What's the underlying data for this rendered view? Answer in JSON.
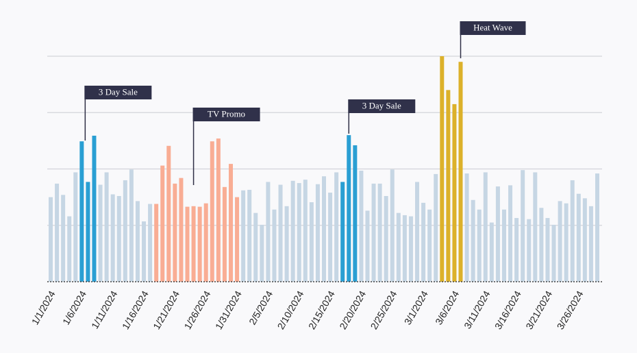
{
  "chart_data": {
    "type": "bar",
    "categories": [
      "1/1/2024",
      null,
      null,
      null,
      null,
      "1/6/2024",
      null,
      null,
      null,
      null,
      "1/11/2024",
      null,
      null,
      null,
      null,
      "1/16/2024",
      null,
      null,
      null,
      null,
      "1/21/2024",
      null,
      null,
      null,
      null,
      "1/26/2024",
      null,
      null,
      null,
      null,
      "1/31/2024",
      null,
      null,
      null,
      null,
      "2/5/2024",
      null,
      null,
      null,
      null,
      "2/10/2024",
      null,
      null,
      null,
      null,
      "2/15/2024",
      null,
      null,
      null,
      null,
      "2/20/2024",
      null,
      null,
      null,
      null,
      "2/25/2024",
      null,
      null,
      null,
      null,
      "3/1/2024",
      null,
      null,
      null,
      null,
      "3/6/2024",
      null,
      null,
      null,
      null,
      "3/11/2024",
      null,
      null,
      null,
      null,
      "3/16/2024",
      null,
      null,
      null,
      null,
      "3/21/2024",
      null,
      null,
      null,
      null,
      "3/26/2024",
      null,
      null,
      null
    ],
    "values": [
      150,
      174,
      154,
      116,
      194,
      249,
      177,
      259,
      172,
      194,
      155,
      152,
      180,
      199,
      143,
      107,
      138,
      138,
      206,
      241,
      174,
      184,
      133,
      134,
      133,
      139,
      249,
      254,
      168,
      209,
      150,
      162,
      163,
      122,
      101,
      177,
      128,
      172,
      134,
      179,
      175,
      181,
      141,
      173,
      187,
      158,
      194,
      177,
      260,
      242,
      197,
      126,
      174,
      174,
      152,
      199,
      122,
      118,
      116,
      177,
      140,
      128,
      191,
      400,
      340,
      315,
      390,
      192,
      145,
      128,
      194,
      105,
      169,
      128,
      171,
      113,
      198,
      111,
      194,
      131,
      113,
      101,
      143,
      139,
      180,
      156,
      148,
      134,
      192
    ],
    "colors": [
      "#c6d6e4",
      "#c6d6e4",
      "#c6d6e4",
      "#c6d6e4",
      "#c6d6e4",
      "#2a9fd3",
      "#2a9fd3",
      "#2a9fd3",
      "#c6d6e4",
      "#c6d6e4",
      "#c6d6e4",
      "#c6d6e4",
      "#c6d6e4",
      "#c6d6e4",
      "#c6d6e4",
      "#c6d6e4",
      "#c6d6e4",
      "#f9ad94",
      "#f9ad94",
      "#f9ad94",
      "#f9ad94",
      "#f9ad94",
      "#f9ad94",
      "#f9ad94",
      "#f9ad94",
      "#f9ad94",
      "#f9ad94",
      "#f9ad94",
      "#f9ad94",
      "#f9ad94",
      "#f9ad94",
      "#c6d6e4",
      "#c6d6e4",
      "#c6d6e4",
      "#c6d6e4",
      "#c6d6e4",
      "#c6d6e4",
      "#c6d6e4",
      "#c6d6e4",
      "#c6d6e4",
      "#c6d6e4",
      "#c6d6e4",
      "#c6d6e4",
      "#c6d6e4",
      "#c6d6e4",
      "#c6d6e4",
      "#c6d6e4",
      "#2a9fd3",
      "#2a9fd3",
      "#2a9fd3",
      "#c6d6e4",
      "#c6d6e4",
      "#c6d6e4",
      "#c6d6e4",
      "#c6d6e4",
      "#c6d6e4",
      "#c6d6e4",
      "#c6d6e4",
      "#c6d6e4",
      "#c6d6e4",
      "#c6d6e4",
      "#c6d6e4",
      "#c6d6e4",
      "#dcb12a",
      "#dcb12a",
      "#dcb12a",
      "#dcb12a",
      "#c6d6e4",
      "#c6d6e4",
      "#c6d6e4",
      "#c6d6e4",
      "#c6d6e4",
      "#c6d6e4",
      "#c6d6e4",
      "#c6d6e4",
      "#c6d6e4",
      "#c6d6e4",
      "#c6d6e4",
      "#c6d6e4",
      "#c6d6e4",
      "#c6d6e4",
      "#c6d6e4",
      "#c6d6e4",
      "#c6d6e4",
      "#c6d6e4",
      "#c6d6e4",
      "#c6d6e4",
      "#c6d6e4",
      "#c6d6e4"
    ],
    "ylim": [
      0,
      400
    ],
    "yticks": [
      100,
      200,
      300,
      400
    ],
    "grid": true,
    "annotations": [
      {
        "text": "3 Day Sale"
      },
      {
        "text": "TV Promo"
      },
      {
        "text": "3 Day Sale"
      },
      {
        "text": "Heat Wave"
      }
    ]
  }
}
